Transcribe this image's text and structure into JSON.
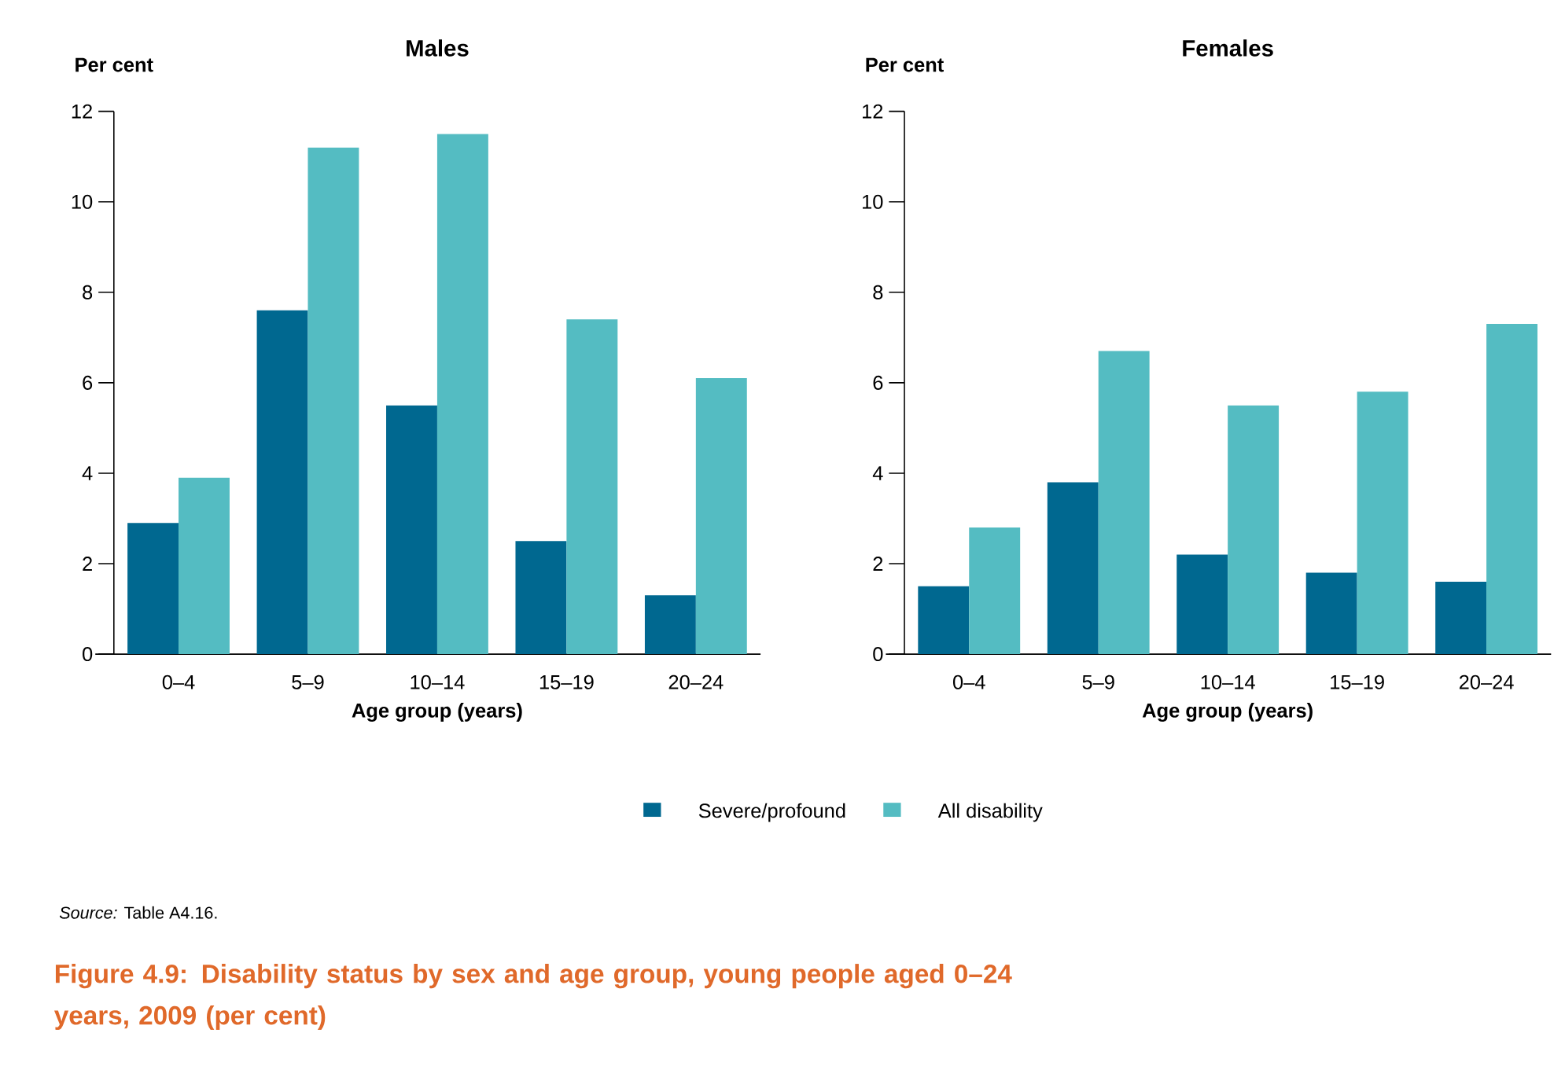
{
  "chart_data": [
    {
      "type": "bar",
      "title": "Males",
      "ylabel": "Per cent",
      "xlabel": "Age group (years)",
      "categories": [
        "0–4",
        "5–9",
        "10–14",
        "15–19",
        "20–24"
      ],
      "series": [
        {
          "name": "Severe/profound",
          "color": "#006890",
          "values": [
            2.9,
            7.6,
            5.5,
            2.5,
            1.3
          ]
        },
        {
          "name": "All disability",
          "color": "#54bcc2",
          "values": [
            3.9,
            11.2,
            11.5,
            7.4,
            6.1
          ]
        }
      ],
      "ylim": [
        0,
        12
      ],
      "yticks": [
        0,
        2,
        4,
        6,
        8,
        10,
        12
      ],
      "legend": "bottom",
      "annotations": [
        "*Source:* Table A4.16.",
        "Figure 4.9: Disability status by sex and age group, young people aged 0–24 years, 2009 (per cent)"
      ]
    },
    {
      "type": "bar",
      "title": "Females",
      "ylabel": "Per cent",
      "xlabel": "Age group (years)",
      "categories": [
        "0–4",
        "5–9",
        "10–14",
        "15–19",
        "20–24"
      ],
      "series": [
        {
          "color": "#006890",
          "values": [
            1.5,
            3.8,
            2.2,
            1.8,
            1.6
          ]
        },
        {
          "color": "#54bcc2",
          "values": [
            2.8,
            6.7,
            5.5,
            5.8,
            7.3
          ]
        }
      ],
      "ylim": [
        0,
        12
      ],
      "yticks": [
        0,
        2,
        4,
        6,
        8,
        10,
        12
      ]
    }
  ]
}
